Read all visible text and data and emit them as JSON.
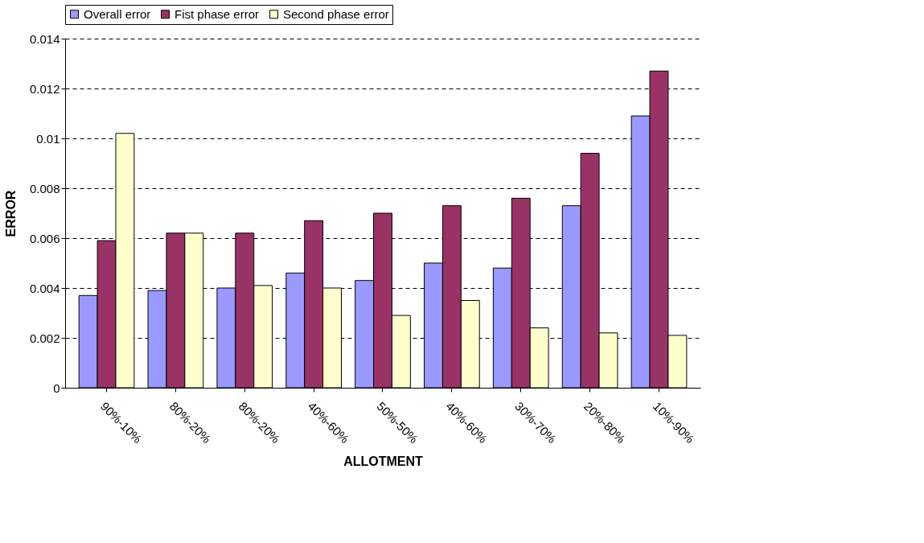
{
  "chart_data": {
    "type": "bar",
    "xlabel": "ALLOTMENT",
    "ylabel": "ERROR",
    "categories": [
      "90%-10%",
      "80%-20%",
      "80%-20%",
      "40%-60%",
      "50%-50%",
      "40%-60%",
      "30%-70%",
      "20%-80%",
      "10%-90%"
    ],
    "series": [
      {
        "name": "Overall error",
        "color": "#9999ff",
        "values": [
          0.0037,
          0.0039,
          0.004,
          0.0046,
          0.0043,
          0.005,
          0.0048,
          0.0073,
          0.0109
        ]
      },
      {
        "name": "Fist phase error",
        "color": "#993366",
        "values": [
          0.0059,
          0.0062,
          0.0062,
          0.0067,
          0.007,
          0.0073,
          0.0076,
          0.0094,
          0.0127
        ]
      },
      {
        "name": "Second phase error",
        "color": "#ffffcc",
        "values": [
          0.0102,
          0.0062,
          0.0041,
          0.004,
          0.0029,
          0.0035,
          0.0024,
          0.0022,
          0.0021
        ]
      }
    ],
    "ylim": [
      0,
      0.014
    ],
    "yticks": [
      0,
      0.002,
      0.004,
      0.006,
      0.008,
      0.01,
      0.012,
      0.014
    ],
    "grid": "y",
    "legend": "top"
  }
}
